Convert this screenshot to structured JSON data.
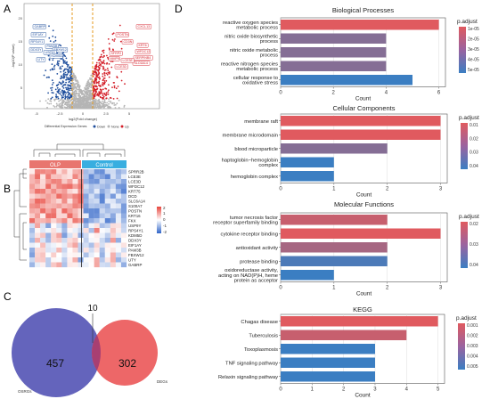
{
  "panel_letters": {
    "a": "A",
    "b": "B",
    "c": "C",
    "d": "D"
  },
  "volcano": {
    "xlabel": "log2(Fold change)",
    "ylabel": "-log10(P value)",
    "x_ticks": [
      "-5",
      "-2.5",
      "0",
      "2.5",
      "5"
    ],
    "y_ticks": [
      "20",
      "15",
      "10",
      "5"
    ],
    "legend_title": "Differential Expression Genes",
    "legend_items": [
      "Down",
      "None",
      "Up"
    ],
    "down_labels": [
      "GABRP",
      "EIF1AY",
      "RPS4Y1",
      "DDX3Y",
      "PAM3B",
      "FBXW12",
      "USP9Y",
      "KDM5D",
      "UTY"
    ],
    "up_labels": [
      "CXCL13",
      "POSTN",
      "CD3N",
      "SFRP2",
      "MMP9",
      "KRT6",
      "WFDC12",
      "SERPINB4",
      "SLC6A14",
      "LCE3E",
      "LCE3D"
    ],
    "colors": {
      "down": "#1f4e9c",
      "none": "#b5b5b5",
      "up": "#d4202a",
      "threshold": "#e59a1e"
    }
  },
  "heatmap": {
    "groups": [
      "OLP",
      "Control"
    ],
    "group_colors": [
      "#e8756f",
      "#38aee0"
    ],
    "genes": [
      "SPRR2B",
      "LCE3E",
      "LCE3D",
      "WFDC12",
      "KRT75",
      "DCD",
      "SLC6A14",
      "S100A7",
      "POSTN",
      "KRT16",
      "FKX",
      "USP9Y",
      "RPS4Y1",
      "KDM5D",
      "DDX3Y",
      "EIF1AY",
      "PAM3B",
      "FBXW12",
      "UTY",
      "GABRP"
    ],
    "scale_ticks": [
      "2",
      "1",
      "0",
      "-1",
      "-2"
    ]
  },
  "venn": {
    "left_label": "OSRGs",
    "right_label": "DEGs",
    "left_only": "457",
    "overlap": "10",
    "right_only": "302"
  },
  "gsea": {
    "x_axis_label": "Count",
    "legend_title": "p.adjust",
    "color_low": "#e05a5f",
    "color_high": "#3b7ec2"
  },
  "chart_data": [
    {
      "type": "bar",
      "title": "Biological Processes",
      "categories": [
        "reactive oxygen species metabolic process",
        "nitric oxide biosynthetic process",
        "nitric oxide metabolic process",
        "reactive nitrogen species metabolic process",
        "cellular response to oxidative stress"
      ],
      "values": [
        6,
        4,
        4,
        4,
        5
      ],
      "padj_fraction": [
        0.0,
        0.55,
        0.55,
        0.55,
        1.0
      ],
      "xlabel": "Count",
      "xlim": [
        0,
        6
      ],
      "x_ticks": [
        "0",
        "2",
        "4",
        "6"
      ],
      "legend_ticks": [
        "1e-05",
        "2e-05",
        "3e-05",
        "4e-05",
        "5e-05"
      ]
    },
    {
      "type": "bar",
      "title": "Cellular Components",
      "categories": [
        "membrane raft",
        "membrane microdomain",
        "blood microparticle",
        "haptoglobin−hemoglobin complex",
        "hemoglobin complex"
      ],
      "values": [
        3,
        3,
        2,
        1,
        1
      ],
      "padj_fraction": [
        0.0,
        0.0,
        0.55,
        1.0,
        1.0
      ],
      "xlabel": "Count",
      "xlim": [
        0,
        3
      ],
      "x_ticks": [
        "0",
        "1",
        "2",
        "3"
      ],
      "legend_ticks": [
        "0.01",
        "0.02",
        "0.03",
        "0.04"
      ]
    },
    {
      "type": "bar",
      "title": "Molecular Functions",
      "categories": [
        "tumor necrosis factor receptor superfamily binding",
        "cytokine receptor binding",
        "antioxidant activity",
        "protease binding",
        "oxidoreductase activity, acting on NAD(P)H, heme protein as acceptor"
      ],
      "values": [
        2,
        3,
        2,
        2,
        1
      ],
      "padj_fraction": [
        0.15,
        0.0,
        0.35,
        0.9,
        1.0
      ],
      "xlabel": "Count",
      "xlim": [
        0,
        3
      ],
      "x_ticks": [
        "0",
        "1",
        "2",
        "3"
      ],
      "legend_ticks": [
        "0.02",
        "0.03",
        "0.04"
      ]
    },
    {
      "type": "bar",
      "title": "KEGG",
      "categories": [
        "Chagas disease",
        "Tuberculosis",
        "Toxoplasmosis",
        "TNF signaling pathway",
        "Relaxin signaling pathway"
      ],
      "values": [
        5,
        4,
        3,
        3,
        3
      ],
      "padj_fraction": [
        0.0,
        0.15,
        1.0,
        1.0,
        1.0
      ],
      "xlabel": "Count",
      "xlim": [
        0,
        5
      ],
      "x_ticks": [
        "0",
        "1",
        "2",
        "3",
        "4",
        "5"
      ],
      "legend_ticks": [
        "0.001",
        "0.002",
        "0.003",
        "0.004",
        "0.005"
      ]
    }
  ]
}
